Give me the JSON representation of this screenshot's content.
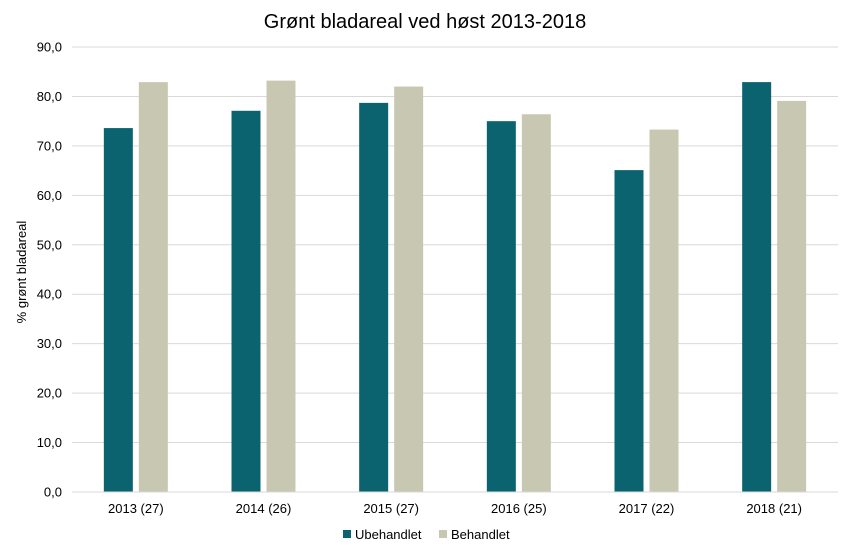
{
  "chart_data": {
    "type": "bar",
    "title": "Grønt bladareal ved høst 2013-2018",
    "xlabel": "",
    "ylabel": "% grønt bladareal",
    "ylim": [
      0,
      90
    ],
    "ytick_step": 10,
    "ytick_labels": [
      "0,0",
      "10,0",
      "20,0",
      "30,0",
      "40,0",
      "50,0",
      "60,0",
      "70,0",
      "80,0",
      "90,0"
    ],
    "grid": true,
    "legend_position": "bottom",
    "categories": [
      "2013 (27)",
      "2014 (26)",
      "2015 (27)",
      "2016 (25)",
      "2017 (22)",
      "2018 (21)"
    ],
    "series": [
      {
        "name": "Ubehandlet",
        "color": "#0b6370",
        "values": [
          73.6,
          77.1,
          78.7,
          75.0,
          65.1,
          82.9
        ]
      },
      {
        "name": "Behandlet",
        "color": "#c8c8b2",
        "values": [
          82.9,
          83.2,
          82.0,
          76.4,
          73.3,
          79.1
        ]
      }
    ]
  }
}
